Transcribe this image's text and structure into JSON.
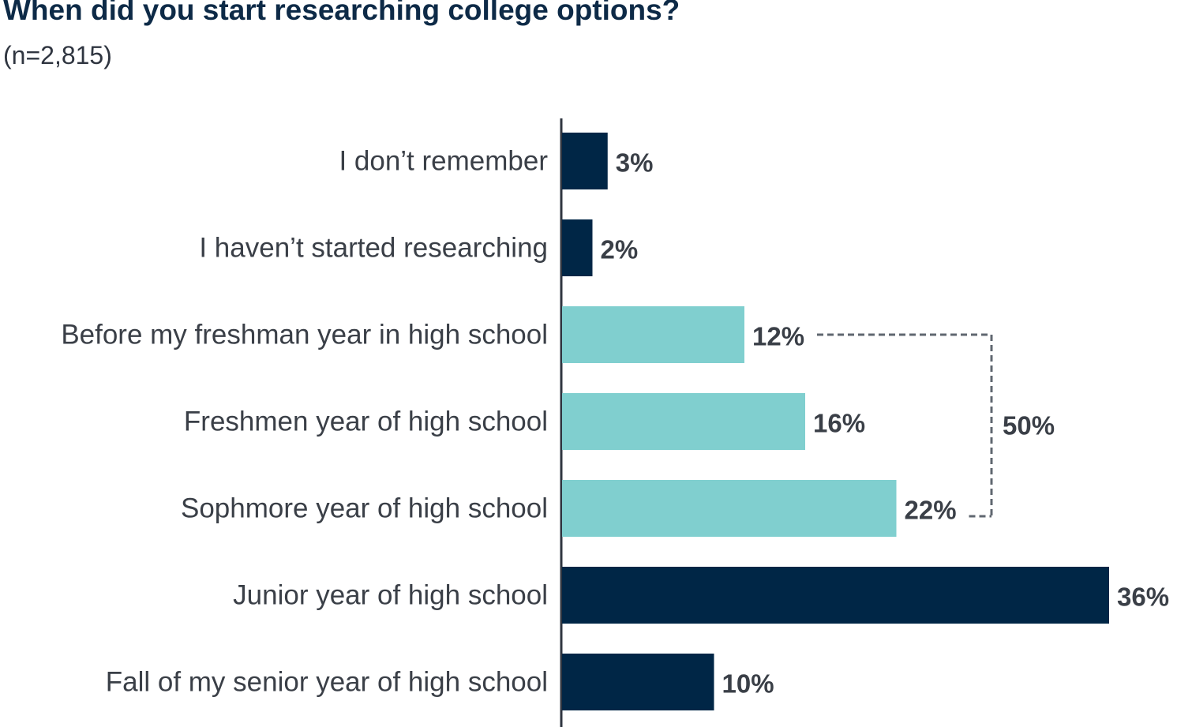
{
  "chart_data": {
    "type": "bar",
    "orientation": "horizontal",
    "title": "When did you start researching college options?",
    "subtitle": "(n=2,815)",
    "categories": [
      "I don’t remember",
      "I haven’t started researching",
      "Before my freshman year in high school",
      "Freshmen year of high school",
      "Sophmore year of high school",
      "Junior year of high school",
      "Fall of my senior year of high school"
    ],
    "values": [
      3,
      2,
      12,
      16,
      22,
      36,
      10
    ],
    "value_labels": [
      "3%",
      "2%",
      "12%",
      "16%",
      "22%",
      "36%",
      "10%"
    ],
    "highlighted": [
      false,
      false,
      true,
      true,
      true,
      false,
      false
    ],
    "xlim": [
      0,
      36
    ],
    "grid": false,
    "legend": "none",
    "bracket": {
      "from_index": 2,
      "to_index": 4,
      "label": "50%"
    },
    "colors": {
      "default_bar": "#002646",
      "highlight_bar": "#80cfcf",
      "axis": "#2f3540",
      "bracket": "#606770",
      "title": "#0d2a47",
      "text": "#3a3f47"
    }
  }
}
